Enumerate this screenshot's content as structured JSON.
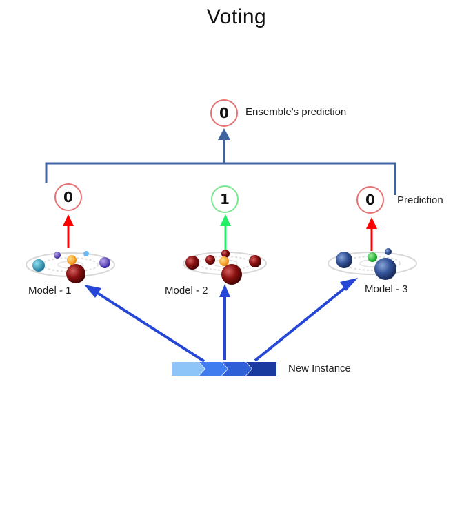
{
  "title": "Voting",
  "ensemble": {
    "value": "0",
    "label": "Ensemble's prediction",
    "color": "#e57373"
  },
  "prediction_label": "Prediction",
  "models": [
    {
      "name": "Model - 1",
      "prediction": "0",
      "color": "#e57373",
      "arrow_color": "#ff0000"
    },
    {
      "name": "Model - 2",
      "prediction": "1",
      "color": "#7be68f",
      "arrow_color": "#22ee66"
    },
    {
      "name": "Model - 3",
      "prediction": "0",
      "color": "#e57373",
      "arrow_color": "#ff0000"
    }
  ],
  "input_label": "New Instance",
  "colors": {
    "bracket": "#3f62a3",
    "input_arrow": "#2647d6"
  }
}
